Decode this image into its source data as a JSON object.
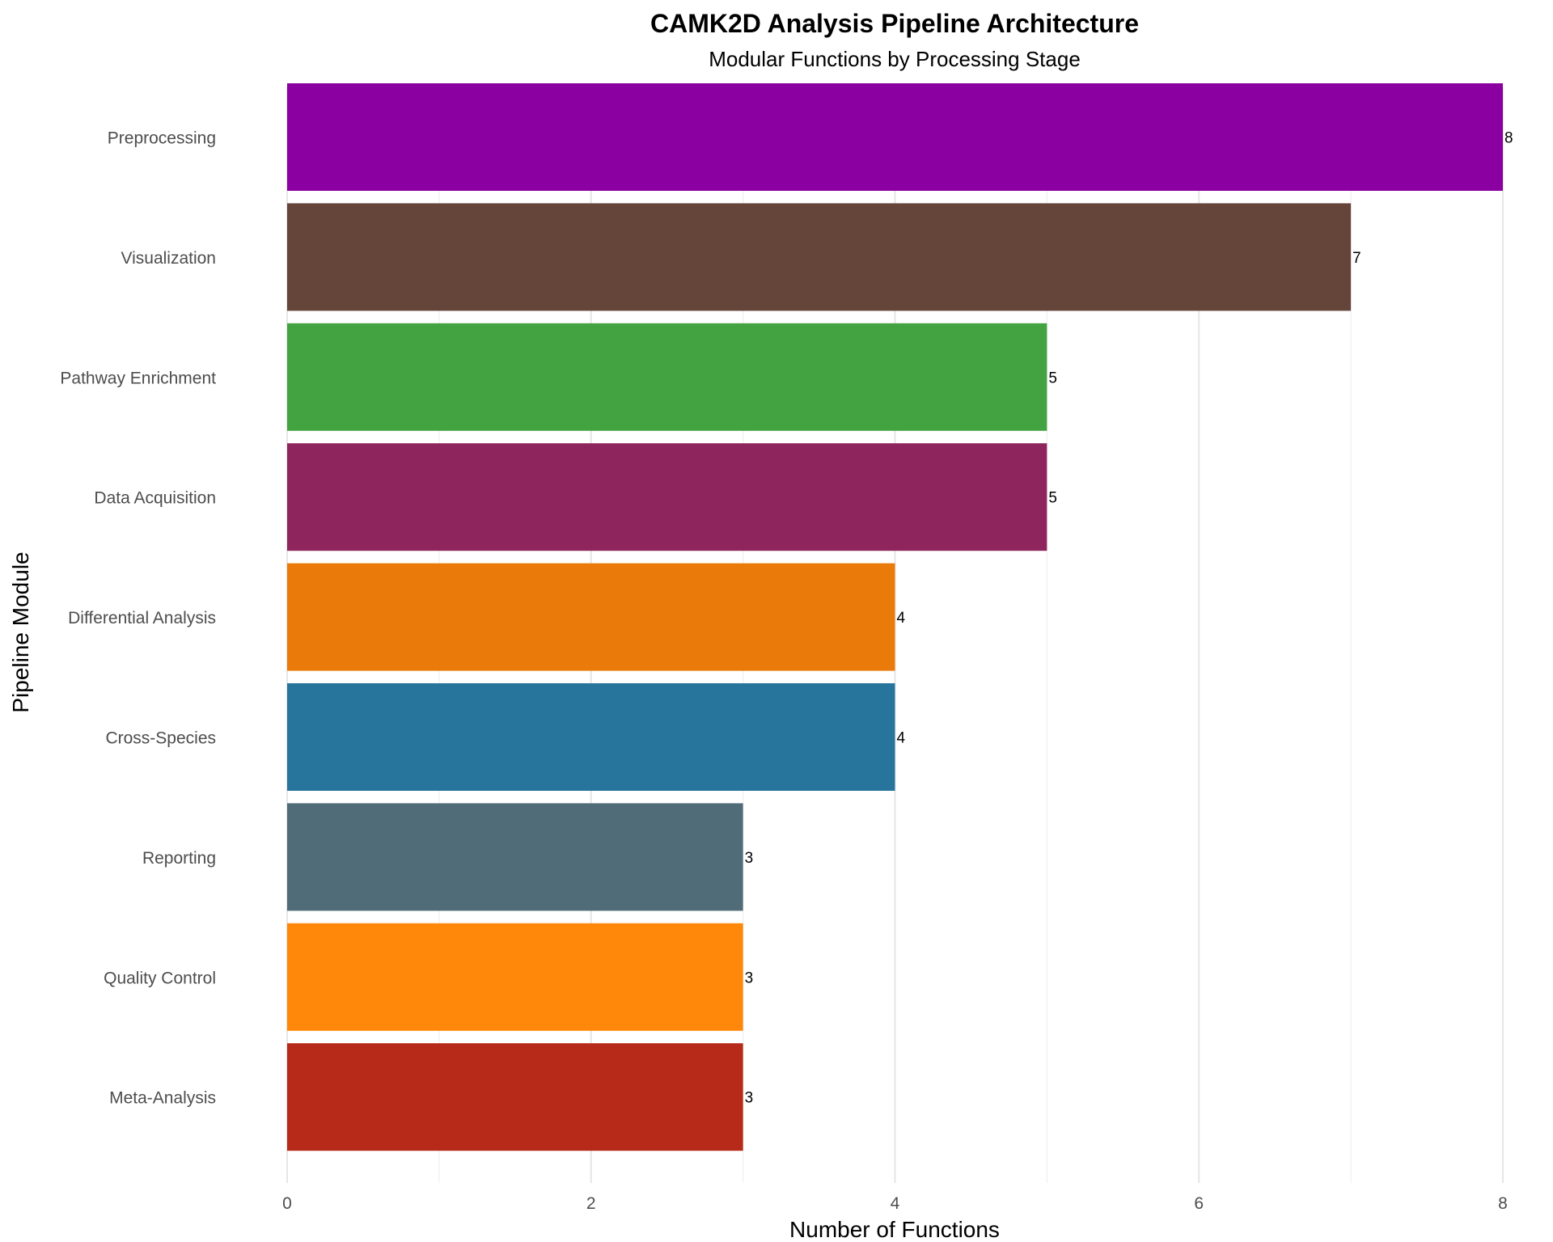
{
  "chart_data": {
    "type": "bar",
    "orientation": "horizontal",
    "title": "CAMK2D Analysis Pipeline Architecture",
    "subtitle": "Modular Functions by Processing Stage",
    "xlabel": "Number of Functions",
    "ylabel": "Pipeline Module",
    "xlim": [
      0,
      8
    ],
    "x_ticks": [
      "0",
      "2",
      "4",
      "6",
      "8"
    ],
    "grid": "vertical",
    "legend": "none",
    "categories": [
      "Preprocessing",
      "Visualization",
      "Pathway Enrichment",
      "Data Acquisition",
      "Differential Analysis",
      "Cross-Species",
      "Reporting",
      "Quality Control",
      "Meta-Analysis"
    ],
    "values": [
      8,
      7,
      5,
      5,
      4,
      4,
      3,
      3,
      3
    ],
    "value_labels": [
      "8",
      "7",
      "5",
      "5",
      "4",
      "4",
      "3",
      "3",
      "3"
    ],
    "colors": [
      "#8B00A0",
      "#65443A",
      "#43A341",
      "#8F255D",
      "#EA7A09",
      "#27759C",
      "#506C78",
      "#FF880A",
      "#B72918"
    ]
  }
}
